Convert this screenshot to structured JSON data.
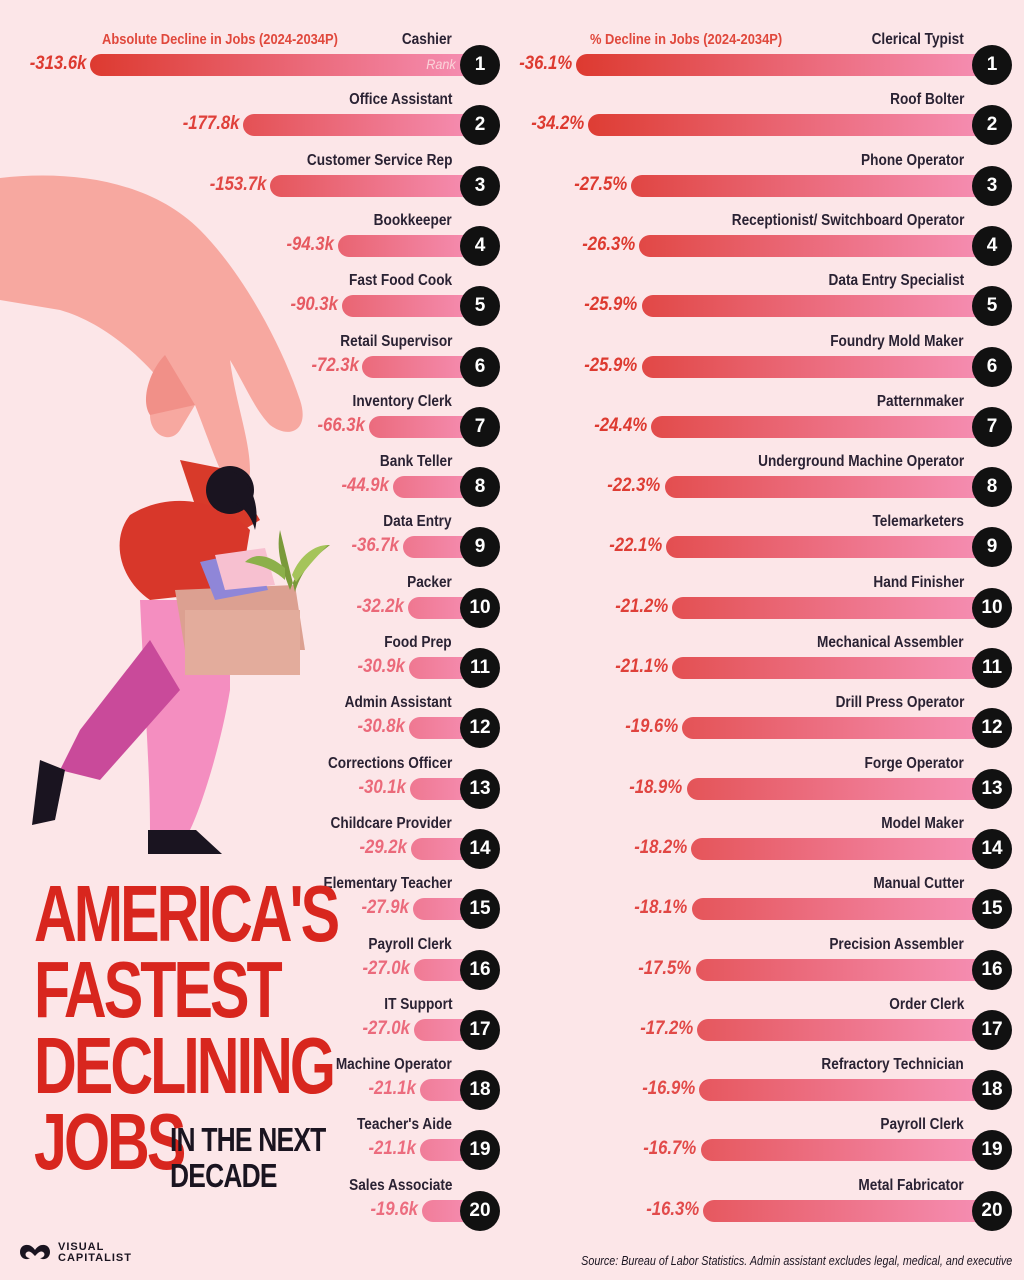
{
  "chart_data": [
    {
      "type": "bar",
      "title": "Absolute Decline in Jobs (2024-2034P)",
      "rank_label": "Rank",
      "unit_suffix": "k",
      "categories": [
        "Cashier",
        "Office Assistant",
        "Customer Service Rep",
        "Bookkeeper",
        "Fast Food Cook",
        "Retail Supervisor",
        "Inventory Clerk",
        "Bank Teller",
        "Data Entry",
        "Packer",
        "Food Prep",
        "Admin Assistant",
        "Corrections Officer",
        "Childcare Provider",
        "Elementary Teacher",
        "Payroll Clerk",
        "IT Support",
        "Machine Operator",
        "Teacher's Aide",
        "Sales Associate"
      ],
      "values": [
        -313.6,
        -177.8,
        -153.7,
        -94.3,
        -90.3,
        -72.3,
        -66.3,
        -44.9,
        -36.7,
        -32.2,
        -30.9,
        -30.8,
        -30.1,
        -29.2,
        -27.9,
        -27.0,
        -27.0,
        -21.1,
        -21.1,
        -19.6
      ],
      "labels": [
        "-313.6k",
        "-177.8k",
        "-153.7k",
        "-94.3k",
        "-90.3k",
        "-72.3k",
        "-66.3k",
        "-44.9k",
        "-36.7k",
        "-32.2k",
        "-30.9k",
        "-30.8k",
        "-30.1k",
        "-29.2k",
        "-27.9k",
        "-27.0k",
        "-27.0k",
        "-21.1k",
        "-21.1k",
        "-19.6k"
      ],
      "ranks": [
        1,
        2,
        3,
        4,
        5,
        6,
        7,
        8,
        9,
        10,
        11,
        12,
        13,
        14,
        15,
        16,
        17,
        18,
        19,
        20
      ],
      "orientation": "horizontal"
    },
    {
      "type": "bar",
      "title": "% Decline in Jobs (2024-2034P)",
      "unit_suffix": "%",
      "categories": [
        "Clerical Typist",
        "Roof Bolter",
        "Phone Operator",
        "Receptionist/ Switchboard Operator",
        "Data Entry Specialist",
        "Foundry Mold Maker",
        "Patternmaker",
        "Underground Machine Operator",
        "Telemarketers",
        "Hand Finisher",
        "Mechanical Assembler",
        "Drill Press Operator",
        "Forge Operator",
        "Model Maker",
        "Manual Cutter",
        "Precision Assembler",
        "Order Clerk",
        "Refractory Technician",
        "Payroll Clerk",
        "Metal Fabricator"
      ],
      "values": [
        -36.1,
        -34.2,
        -27.5,
        -26.3,
        -25.9,
        -25.9,
        -24.4,
        -22.3,
        -22.1,
        -21.2,
        -21.1,
        -19.6,
        -18.9,
        -18.2,
        -18.1,
        -17.5,
        -17.2,
        -16.9,
        -16.7,
        -16.3
      ],
      "labels": [
        "-36.1%",
        "-34.2%",
        "-27.5%",
        "-26.3%",
        "-25.9%",
        "-25.9%",
        "-24.4%",
        "-22.3%",
        "-22.1%",
        "-21.2%",
        "-21.1%",
        "-19.6%",
        "-18.9%",
        "-18.2%",
        "-18.1%",
        "-17.5%",
        "-17.2%",
        "-16.9%",
        "-16.7%",
        "-16.3%"
      ],
      "ranks": [
        1,
        2,
        3,
        4,
        5,
        6,
        7,
        8,
        9,
        10,
        11,
        12,
        13,
        14,
        15,
        16,
        17,
        18,
        19,
        20
      ],
      "orientation": "horizontal"
    }
  ],
  "headline": {
    "lines": [
      "AMERICA'S",
      "FASTEST",
      "DECLINING",
      "JOBS"
    ],
    "subtitle_lines": [
      "IN THE NEXT",
      "DECADE"
    ]
  },
  "brand": {
    "line1": "VISUAL",
    "line2": "CAPITALIST"
  },
  "source": "Source: Bureau of Labor Statistics. Admin assistant excludes legal, medical, and executive",
  "colors": {
    "background": "#fce6e8",
    "bar_dark": "#dd3a30",
    "bar_mid": "#ee6a78",
    "bar_light": "#f690b6",
    "title_red": "#d8261e",
    "badge": "#111111"
  }
}
